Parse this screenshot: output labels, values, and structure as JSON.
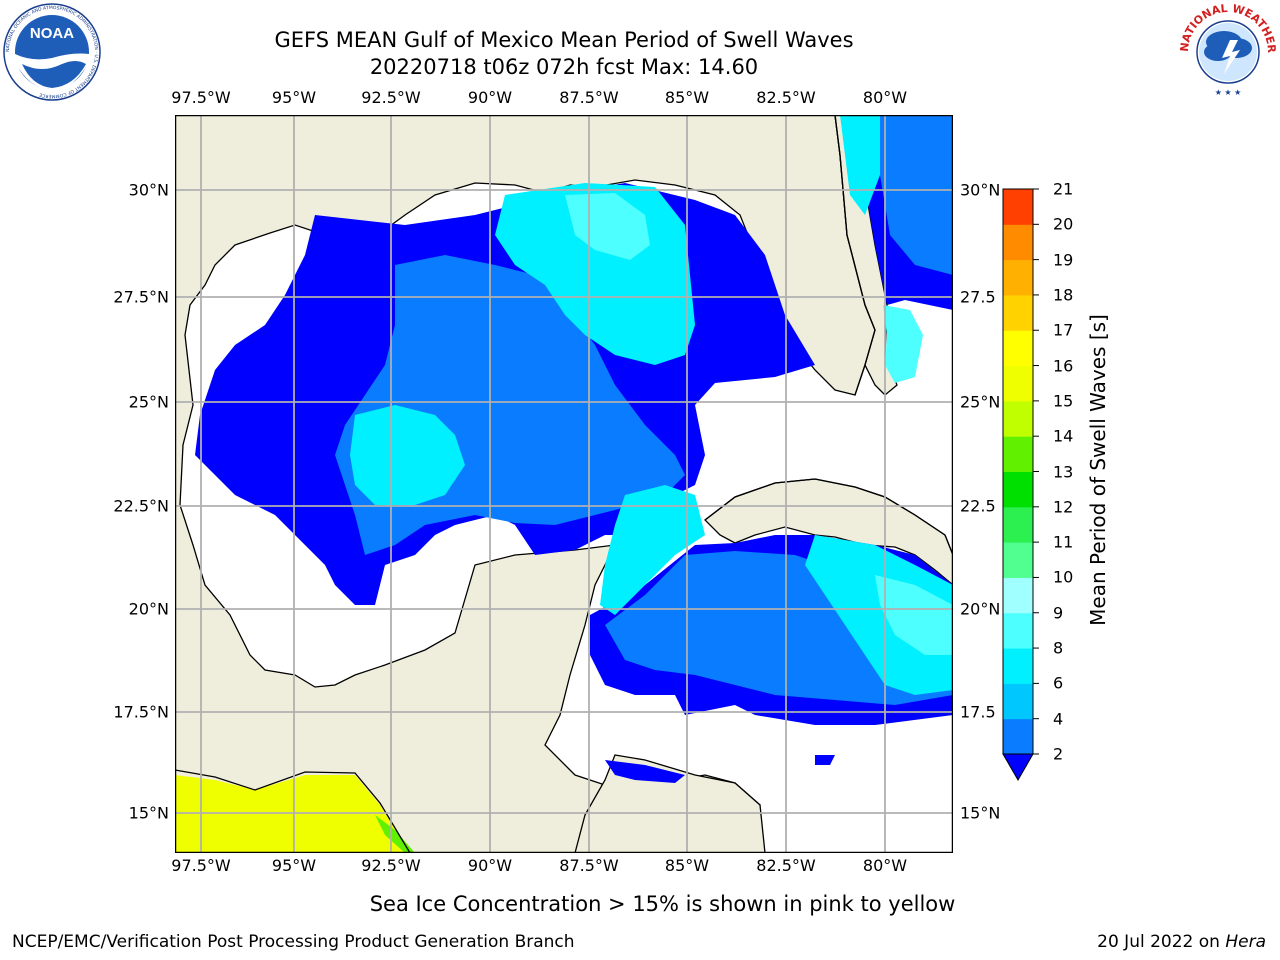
{
  "title_line1": "GEFS MEAN Gulf of Mexico Mean Period of Swell Waves",
  "title_line2": "20220718 t06z 072h fcst   Max: 14.60",
  "x_ticks": [
    "97.5°W",
    "95°W",
    "92.5°W",
    "90°W",
    "87.5°W",
    "85°W",
    "82.5°W",
    "80°W"
  ],
  "y_ticks_left": [
    "30°N",
    "27.5°N",
    "25°N",
    "22.5°N",
    "20°N",
    "17.5°N",
    "15°N"
  ],
  "y_ticks_right": [
    "30°N",
    "27.5",
    "25°N",
    "22.5",
    "20°N",
    "17.5",
    "15°N"
  ],
  "colorbar": {
    "title": "Mean Period of Swell Waves [s]",
    "labels": [
      "2",
      "4",
      "6",
      "8",
      "9",
      "10",
      "11",
      "12",
      "13",
      "14",
      "15",
      "16",
      "17",
      "18",
      "19",
      "20",
      "21"
    ],
    "colors": [
      "#0a7cff",
      "#00c8ff",
      "#00f0ff",
      "#4dffff",
      "#a0ffff",
      "#50ff90",
      "#2cf050",
      "#00e000",
      "#60f000",
      "#c0ff00",
      "#f0ff00",
      "#ffff00",
      "#ffd200",
      "#ffb000",
      "#ff8c00",
      "#ff4000",
      "#ff1a00",
      "#ff0000"
    ],
    "under_color": "#0000ff"
  },
  "ice_note": "Sea Ice Concentration > 15% is shown in pink to yellow",
  "footer_left": "NCEP/EMC/Verification Post Processing Product Generation Branch",
  "footer_date": "20 Jul 2022 on",
  "footer_host": "Hera",
  "logo_left": "NOAA",
  "logo_left_ring": "NATIONAL OCEANIC AND ATMOSPHERIC ADMINISTRATION · U.S. DEPARTMENT OF COMMERCE",
  "logo_right_ring": "NATIONAL WEATHER SERVICE",
  "land_color": "#efeedc",
  "grid_color": "#b0b0b0"
}
